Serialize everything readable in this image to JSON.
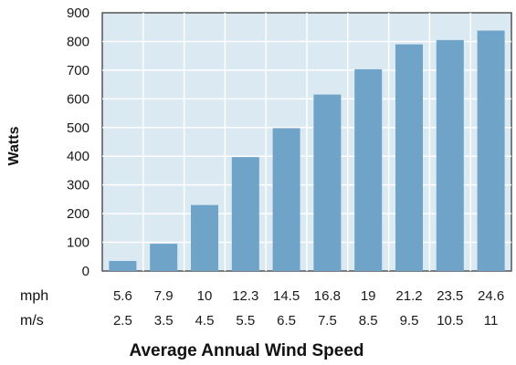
{
  "chart_data": {
    "type": "bar",
    "ylabel": "Watts",
    "xlabel": "Average Annual Wind Speed",
    "ylim": [
      0,
      900
    ],
    "yticks": [
      "0",
      "100",
      "200",
      "300",
      "400",
      "500",
      "600",
      "700",
      "800",
      "900"
    ],
    "grid": true,
    "category_rows": [
      {
        "unit": "mph",
        "labels": [
          "5.6",
          "7.9",
          "10",
          "12.3",
          "14.5",
          "16.8",
          "19",
          "21.2",
          "23.5",
          "24.6"
        ]
      },
      {
        "unit": "m/s",
        "labels": [
          "2.5",
          "3.5",
          "4.5",
          "5.5",
          "6.5",
          "7.5",
          "8.5",
          "9.5",
          "10.5",
          "11"
        ]
      }
    ],
    "categories": [
      "5.6",
      "7.9",
      "10",
      "12.3",
      "14.5",
      "16.8",
      "19",
      "21.2",
      "23.5",
      "24.6"
    ],
    "values": [
      35,
      95,
      230,
      397,
      498,
      615,
      703,
      790,
      805,
      838
    ],
    "colors": {
      "bar": "#6fa3c8",
      "plot_background": "#dbe9f3",
      "grid": "#ffffff",
      "axis": "#555555"
    }
  }
}
